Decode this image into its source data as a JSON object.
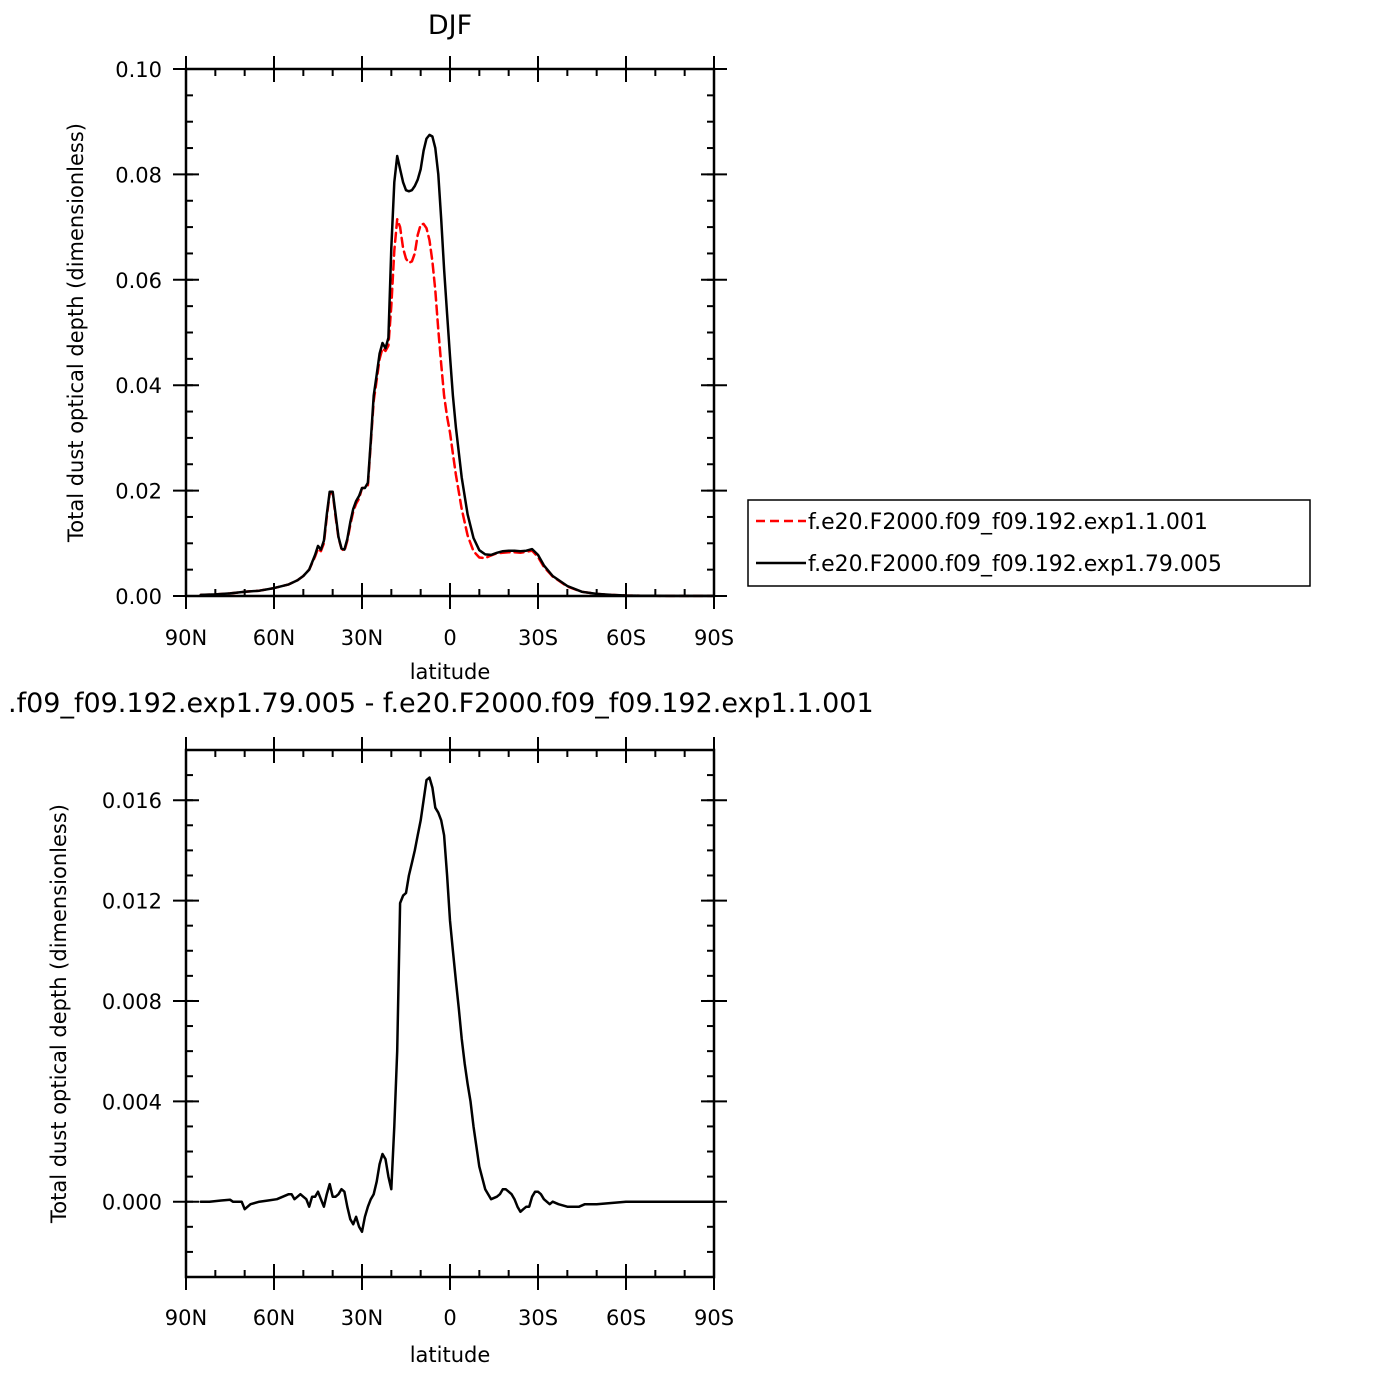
{
  "chart_data": [
    {
      "type": "line",
      "title": "DJF",
      "xlabel": "latitude",
      "ylabel": "Total dust optical depth (dimensionless)",
      "xlim": [
        90,
        -90
      ],
      "ylim": [
        0,
        0.1
      ],
      "xticks": [
        90,
        60,
        30,
        0,
        -30,
        -60,
        -90
      ],
      "xtick_labels": [
        "90N",
        "60N",
        "30N",
        "0",
        "30S",
        "60S",
        "90S"
      ],
      "yticks": [
        0,
        0.02,
        0.04,
        0.06,
        0.08,
        0.1
      ],
      "ytick_labels": [
        "0.00",
        "0.02",
        "0.04",
        "0.06",
        "0.08",
        "0.10"
      ],
      "legend_position": "right",
      "series": [
        {
          "name": "f.e20.F2000.f09_f09.192.exp1.1.001",
          "color": "#ff0000",
          "dash": "dashed",
          "x": [
            85,
            80,
            75,
            70,
            65,
            60,
            55,
            52,
            50,
            48,
            46,
            45,
            44,
            43,
            42,
            41,
            40,
            39,
            38,
            37,
            36,
            35,
            34,
            33,
            32,
            31,
            30,
            29,
            28,
            27,
            26,
            25,
            24,
            23,
            22,
            21,
            20,
            19,
            18,
            17,
            16,
            15,
            14,
            13,
            12,
            11,
            10,
            9,
            8,
            7,
            6,
            5,
            4,
            3,
            2,
            1,
            0,
            -1,
            -2,
            -4,
            -6,
            -8,
            -10,
            -12,
            -14,
            -16,
            -18,
            -20,
            -22,
            -24,
            -26,
            -28,
            -30,
            -32,
            -35,
            -40,
            -45,
            -50,
            -55,
            -60,
            -65,
            -70,
            -75,
            -80,
            -85,
            -90
          ],
          "y": [
            0.0002,
            0.0003,
            0.0005,
            0.0008,
            0.001,
            0.0015,
            0.0022,
            0.003,
            0.0038,
            0.005,
            0.0075,
            0.009,
            0.0085,
            0.01,
            0.015,
            0.0195,
            0.0195,
            0.015,
            0.011,
            0.009,
            0.0085,
            0.0105,
            0.0135,
            0.016,
            0.0175,
            0.0185,
            0.0205,
            0.0205,
            0.021,
            0.029,
            0.037,
            0.041,
            0.045,
            0.047,
            0.0465,
            0.0475,
            0.055,
            0.0655,
            0.0715,
            0.07,
            0.066,
            0.064,
            0.0632,
            0.0635,
            0.065,
            0.0685,
            0.0705,
            0.0706,
            0.0698,
            0.0675,
            0.0635,
            0.058,
            0.0505,
            0.044,
            0.038,
            0.034,
            0.031,
            0.027,
            0.023,
            0.0165,
            0.0115,
            0.0085,
            0.0073,
            0.0072,
            0.0077,
            0.0081,
            0.0082,
            0.0083,
            0.0083,
            0.0082,
            0.0084,
            0.0086,
            0.0074,
            0.0055,
            0.0037,
            0.0018,
            0.0008,
            0.0004,
            0.0002,
            0.0001,
            5e-05,
            3e-05,
            2e-05,
            1e-05,
            1e-05,
            1e-05
          ]
        },
        {
          "name": "f.e20.F2000.f09_f09.192.exp1.79.005",
          "color": "#000000",
          "dash": "solid",
          "x": [
            85,
            80,
            75,
            70,
            65,
            60,
            55,
            52,
            50,
            48,
            46,
            45,
            44,
            43,
            42,
            41,
            40,
            39,
            38,
            37,
            36,
            35,
            34,
            33,
            32,
            31,
            30,
            29,
            28,
            27,
            26,
            25,
            24,
            23,
            22,
            21,
            20,
            19,
            18,
            17,
            16,
            15,
            14,
            13,
            12,
            11,
            10,
            9,
            8,
            7,
            6,
            5,
            4,
            3,
            2,
            1,
            0,
            -1,
            -2,
            -4,
            -6,
            -8,
            -10,
            -12,
            -14,
            -16,
            -18,
            -20,
            -22,
            -24,
            -26,
            -28,
            -30,
            -32,
            -35,
            -40,
            -45,
            -50,
            -55,
            -60,
            -65,
            -70,
            -75,
            -80,
            -85,
            -90
          ],
          "y": [
            0.0002,
            0.0003,
            0.0005,
            0.0008,
            0.001,
            0.0015,
            0.0022,
            0.003,
            0.0038,
            0.005,
            0.0078,
            0.0095,
            0.0088,
            0.0105,
            0.0155,
            0.0198,
            0.0198,
            0.0155,
            0.0112,
            0.009,
            0.0088,
            0.0108,
            0.014,
            0.0165,
            0.018,
            0.019,
            0.0205,
            0.0205,
            0.0215,
            0.0295,
            0.038,
            0.042,
            0.046,
            0.048,
            0.047,
            0.049,
            0.066,
            0.0785,
            0.0835,
            0.081,
            0.0785,
            0.077,
            0.0768,
            0.077,
            0.0778,
            0.079,
            0.081,
            0.0845,
            0.0868,
            0.0875,
            0.0872,
            0.085,
            0.08,
            0.0715,
            0.062,
            0.0535,
            0.0455,
            0.038,
            0.032,
            0.0225,
            0.0155,
            0.011,
            0.0087,
            0.0079,
            0.0078,
            0.0082,
            0.0085,
            0.0086,
            0.0086,
            0.0085,
            0.0086,
            0.0089,
            0.0078,
            0.0058,
            0.0038,
            0.0019,
            0.0008,
            0.0004,
            0.0002,
            0.0001,
            5e-05,
            3e-05,
            2e-05,
            1e-05,
            1e-05,
            1e-05
          ]
        }
      ]
    },
    {
      "type": "line",
      "title": ".f09_f09.192.exp1.79.005 - f.e20.F2000.f09_f09.192.exp1.1.001",
      "xlabel": "latitude",
      "ylabel": "Total dust optical depth (dimensionless)",
      "xlim": [
        90,
        -90
      ],
      "ylim": [
        -0.003,
        0.018
      ],
      "xticks": [
        90,
        60,
        30,
        0,
        -30,
        -60,
        -90
      ],
      "xtick_labels": [
        "90N",
        "60N",
        "30N",
        "0",
        "30S",
        "60S",
        "90S"
      ],
      "yticks": [
        0,
        0.004,
        0.008,
        0.012,
        0.016
      ],
      "ytick_labels": [
        "0.000",
        "0.004",
        "0.008",
        "0.012",
        "0.016"
      ],
      "series": [
        {
          "color": "#000000",
          "dash": "solid",
          "x": [
            85,
            82,
            78,
            75,
            74,
            72,
            71,
            70,
            68,
            65,
            62,
            59,
            57,
            55,
            54,
            53,
            52,
            51,
            50,
            49,
            48,
            47,
            46,
            45,
            44,
            43,
            42,
            41,
            40,
            39,
            38,
            37,
            36,
            35,
            34,
            33,
            32,
            31,
            30,
            29,
            28,
            27,
            26,
            25,
            24,
            23,
            22,
            21,
            20,
            19,
            18,
            17,
            16,
            15,
            14,
            13,
            12,
            11,
            10,
            9,
            8,
            7,
            6,
            5,
            4,
            3,
            2,
            1,
            0,
            -1,
            -2,
            -3,
            -4,
            -5,
            -6,
            -7,
            -8,
            -10,
            -12,
            -14,
            -16,
            -17,
            -18,
            -19,
            -20,
            -21,
            -22,
            -23,
            -24,
            -25,
            -26,
            -27,
            -28,
            -29,
            -30,
            -31,
            -32,
            -33,
            -34,
            -35,
            -37,
            -40,
            -42,
            -44,
            -46,
            -48,
            -50,
            -55,
            -60,
            -65,
            -70,
            -75,
            -80,
            -85,
            -90
          ],
          "y": [
            0.0,
            0.0,
            5e-05,
            8e-05,
            0.0,
            0.0,
            0.0,
            -0.0003,
            -0.0001,
            0.0,
            5e-05,
            0.0001,
            0.0002,
            0.0003,
            0.0003,
            0.0001,
            0.0002,
            0.0003,
            0.0002,
            0.0001,
            -0.0002,
            0.0002,
            0.0002,
            0.0004,
            0.0001,
            -0.0002,
            0.0003,
            0.0007,
            0.0002,
            0.0002,
            0.0003,
            0.0005,
            0.0004,
            -0.0002,
            -0.0007,
            -0.0009,
            -0.0006,
            -0.001,
            -0.0012,
            -0.0006,
            -0.0002,
            0.0001,
            0.0003,
            0.0008,
            0.0015,
            0.0019,
            0.0017,
            0.001,
            0.0005,
            0.003,
            0.006,
            0.0119,
            0.0122,
            0.0123,
            0.013,
            0.0135,
            0.014,
            0.0146,
            0.0152,
            0.016,
            0.0168,
            0.0169,
            0.0165,
            0.0157,
            0.0155,
            0.0152,
            0.0146,
            0.013,
            0.0112,
            0.01,
            0.0088,
            0.0077,
            0.0065,
            0.0055,
            0.0047,
            0.004,
            0.003,
            0.0014,
            0.0005,
            0.0001,
            0.0002,
            0.0003,
            0.0005,
            0.0005,
            0.0004,
            0.0003,
            0.0001,
            -0.0002,
            -0.0004,
            -0.0003,
            -0.0002,
            -0.0002,
            0.0002,
            0.0004,
            0.0004,
            0.0003,
            0.0001,
            0.0,
            -0.0001,
            0.0,
            -0.0001,
            -0.0002,
            -0.0002,
            -0.0002,
            -0.0001,
            -0.0001,
            -0.0001,
            -5e-05,
            0.0,
            0.0,
            0.0,
            0.0,
            0.0,
            0.0,
            0.0
          ]
        }
      ]
    }
  ]
}
